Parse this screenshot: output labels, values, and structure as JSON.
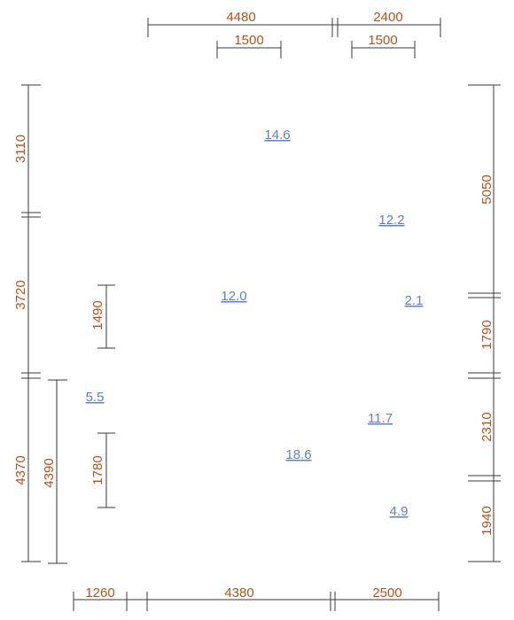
{
  "dimensions": {
    "top_outer": [
      "4480",
      "2400"
    ],
    "top_inner": [
      "1500",
      "1500"
    ],
    "left": [
      "3110",
      "3720",
      "4370"
    ],
    "left_inner": [
      "4390"
    ],
    "left_interior": [
      "1490",
      "1780"
    ],
    "right": [
      "5050",
      "1790",
      "2310",
      "1940"
    ],
    "bottom": [
      "1260",
      "4380",
      "2500"
    ]
  },
  "areas": [
    "14.6",
    "12.2",
    "12.0",
    "2.1",
    "5.5",
    "11.7",
    "18.6",
    "4.9"
  ],
  "colors": {
    "dimension_text": "#b5501a",
    "area_text": "#5a7fd4",
    "lines": "#3a3a3a"
  }
}
